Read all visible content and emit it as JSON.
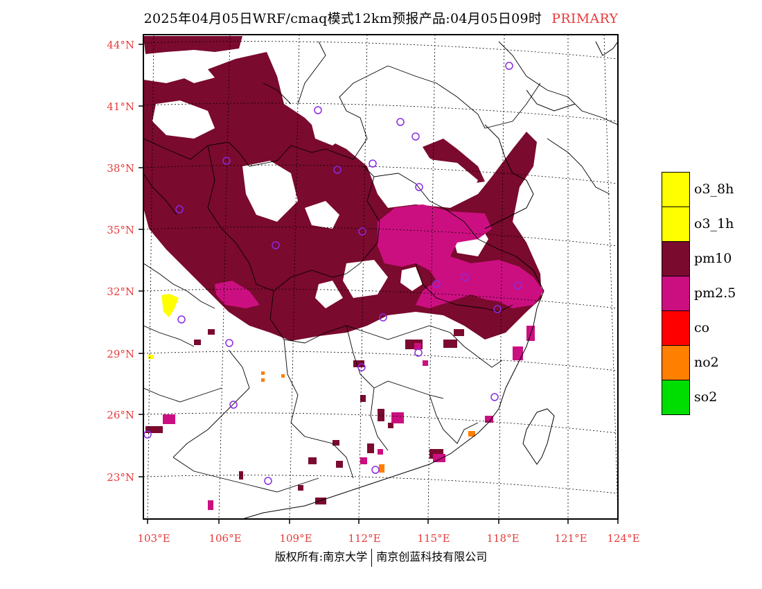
{
  "title": {
    "main": "2025年04月05日WRF/cmaq模式12km预报产品:04月05日09时",
    "tag": "PRIMARY"
  },
  "axes": {
    "lat_labels": [
      "44°N",
      "41°N",
      "38°N",
      "35°N",
      "32°N",
      "29°N",
      "26°N",
      "23°N"
    ],
    "lon_labels": [
      "103°E",
      "106°E",
      "109°E",
      "112°E",
      "115°E",
      "118°E",
      "121°E",
      "124°E"
    ],
    "label_color": "#e83a3a"
  },
  "legend": [
    {
      "label": "o3_8h",
      "color": "#ffff00"
    },
    {
      "label": "o3_1h",
      "color": "#ffff00"
    },
    {
      "label": "pm10",
      "color": "#7a0a2e"
    },
    {
      "label": "pm2.5",
      "color": "#cc0f80"
    },
    {
      "label": "co",
      "color": "#ff0000"
    },
    {
      "label": "no2",
      "color": "#ff7f00"
    },
    {
      "label": "so2",
      "color": "#00dd00"
    }
  ],
  "footer": {
    "left": "版权所有:南京大学",
    "right": "南京创蓝科技有限公司"
  }
}
